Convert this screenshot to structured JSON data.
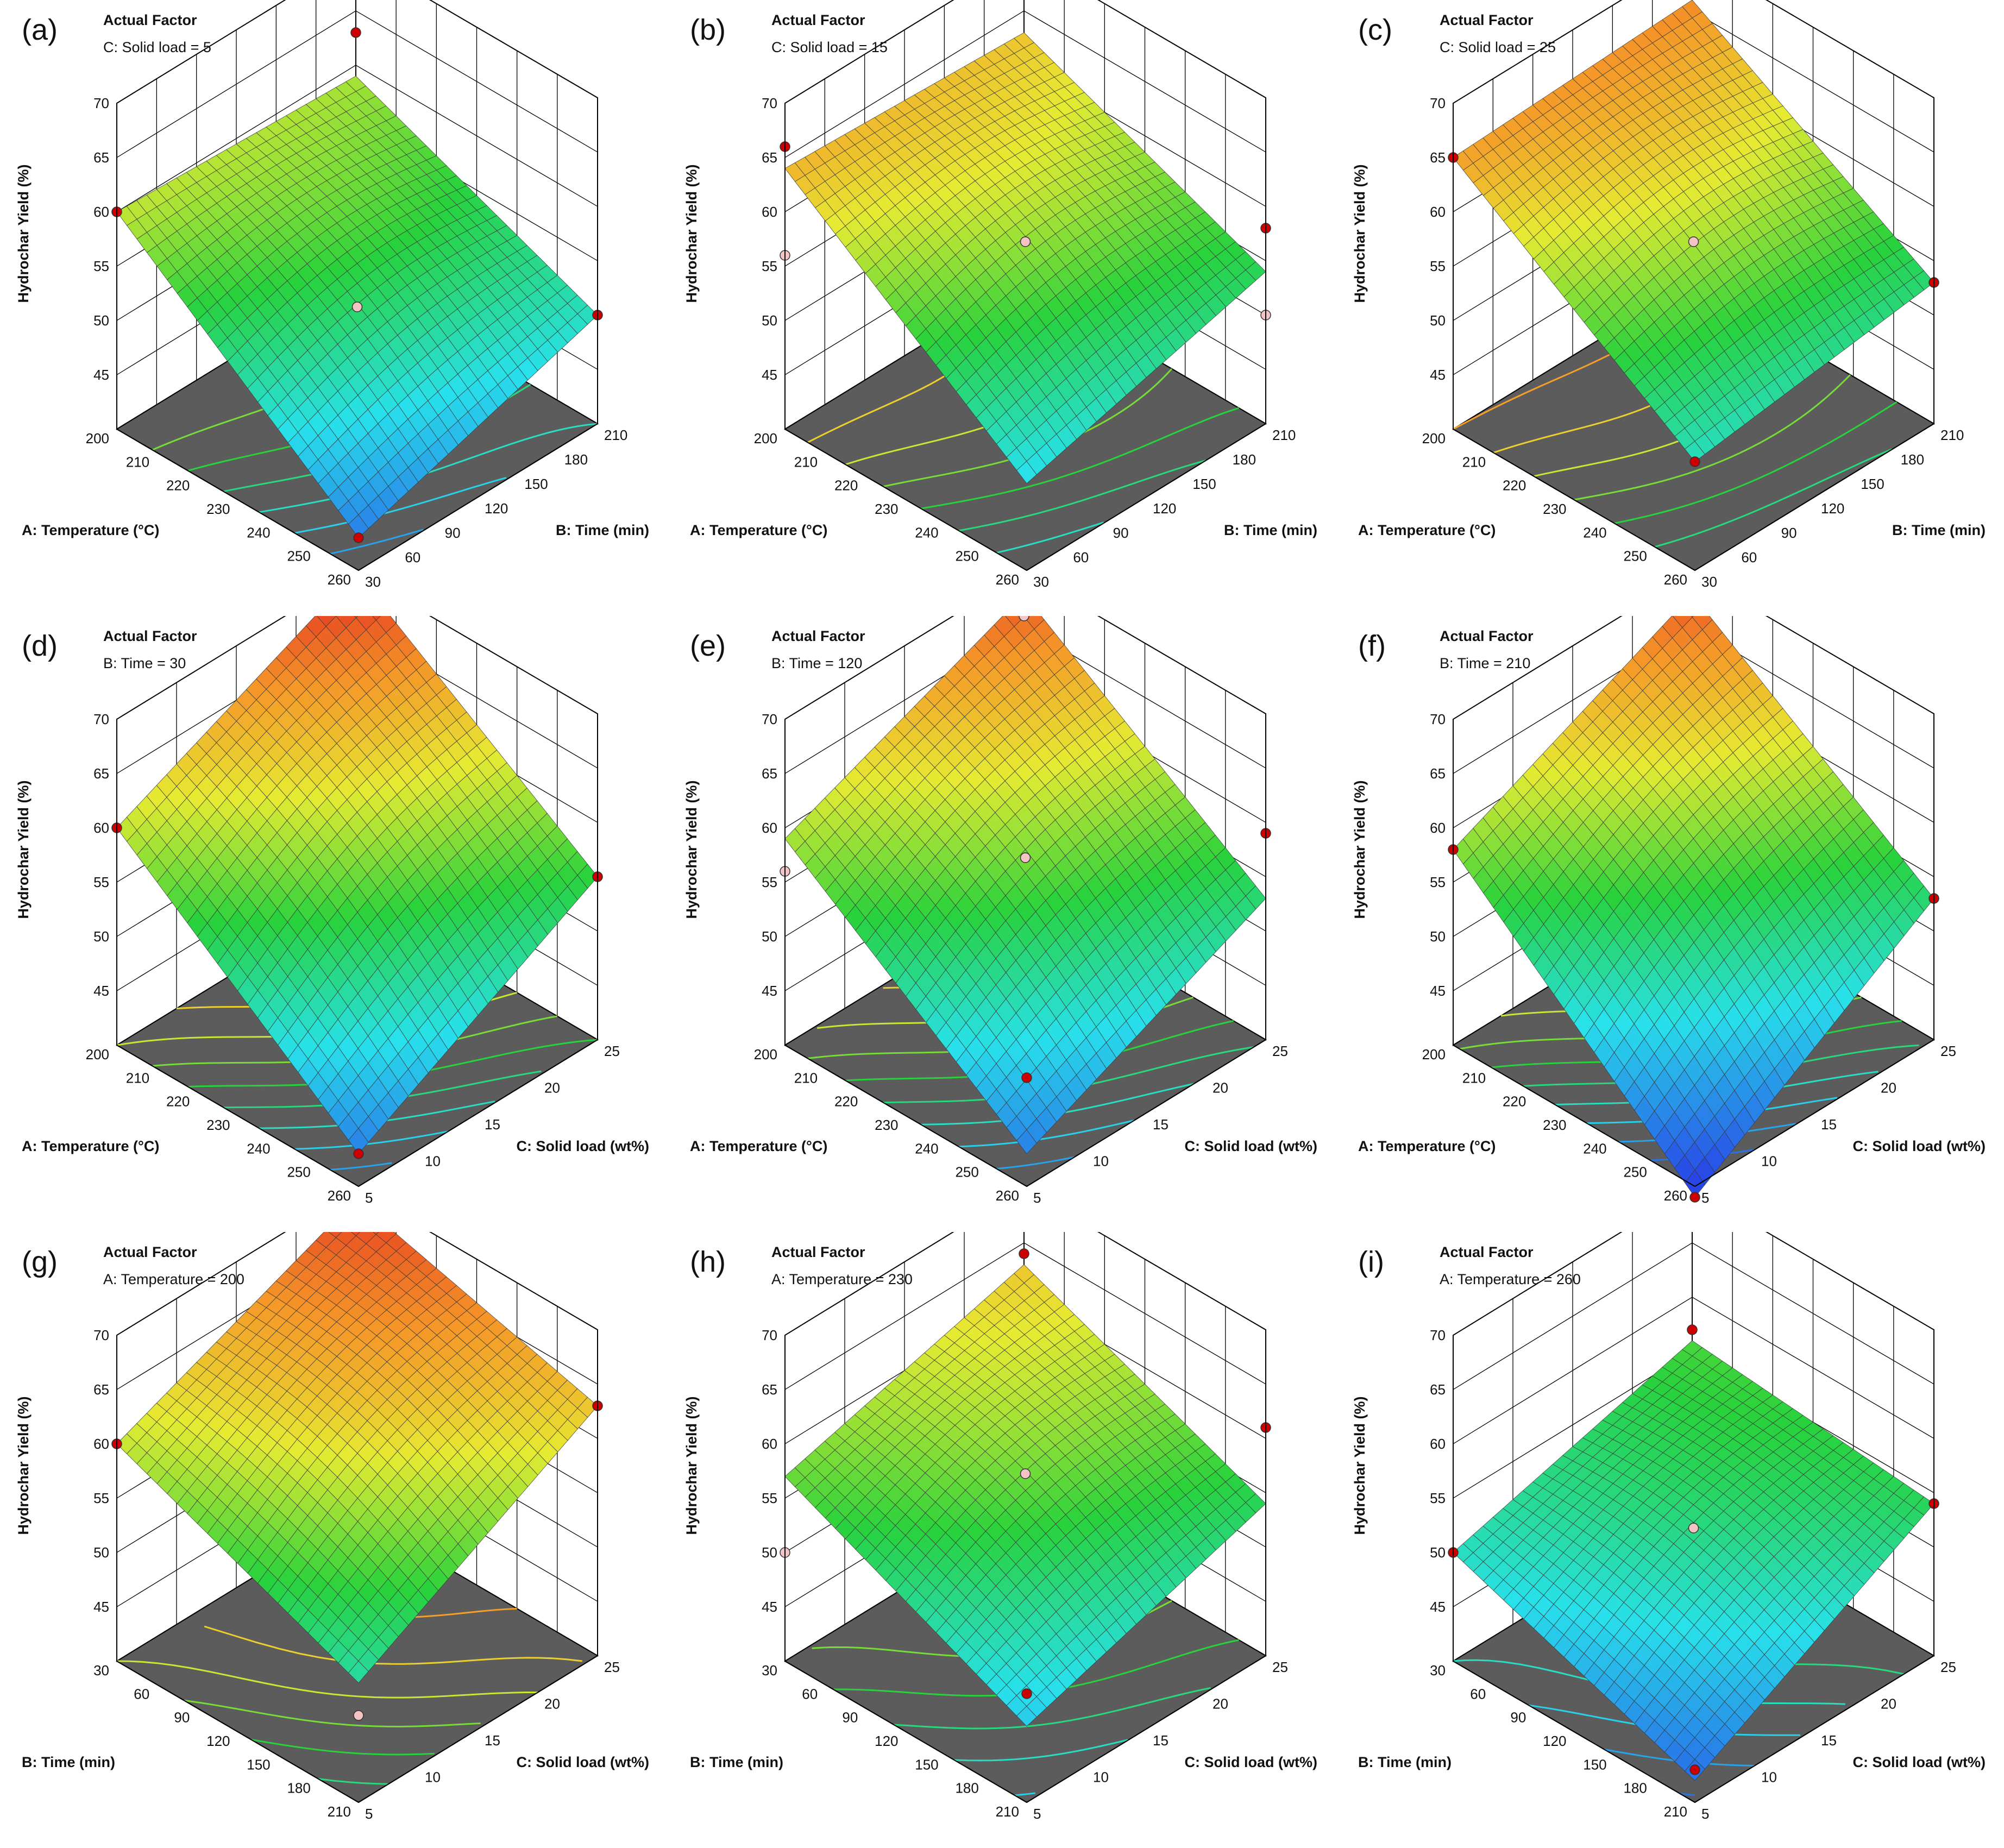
{
  "chart_data": [
    {
      "panel_label": "(a)",
      "type": "surface3d",
      "factor_title": "Actual Factor",
      "factor_value": "C: Solid load = 5",
      "xlabel": "A: Temperature (°C)",
      "ylabel": "B: Time (min)",
      "zlabel": "Hydrochar Yield (%)",
      "x_ticks": [
        "200",
        "210",
        "220",
        "230",
        "240",
        "250",
        "260"
      ],
      "y_ticks": [
        "30",
        "60",
        "90",
        "120",
        "150",
        "180",
        "210"
      ],
      "z_ticks": [
        "45",
        "50",
        "55",
        "60",
        "65",
        "70"
      ],
      "zlim": [
        40,
        70
      ],
      "corners": {
        "x_min_y_min": 60,
        "x_max_y_min": 43,
        "x_min_y_max": 59,
        "x_max_y_max": 50
      },
      "design_points": [
        [
          200,
          30,
          60
        ],
        [
          260,
          30,
          43
        ],
        [
          200,
          210,
          63
        ],
        [
          260,
          210,
          50
        ],
        [
          230,
          120,
          51
        ]
      ]
    },
    {
      "panel_label": "(b)",
      "type": "surface3d",
      "factor_title": "Actual Factor",
      "factor_value": "C: Solid load = 15",
      "xlabel": "A: Temperature (°C)",
      "ylabel": "B: Time (min)",
      "zlabel": "Hydrochar Yield (%)",
      "x_ticks": [
        "200",
        "210",
        "220",
        "230",
        "240",
        "250",
        "260"
      ],
      "y_ticks": [
        "30",
        "60",
        "90",
        "120",
        "150",
        "180",
        "210"
      ],
      "z_ticks": [
        "45",
        "50",
        "55",
        "60",
        "65",
        "70"
      ],
      "zlim": [
        40,
        70
      ],
      "corners": {
        "x_min_y_min": 64,
        "x_max_y_min": 48,
        "x_min_y_max": 63,
        "x_max_y_max": 54
      },
      "design_points": [
        [
          200,
          30,
          66
        ],
        [
          200,
          30,
          56
        ],
        [
          230,
          120,
          57
        ],
        [
          260,
          210,
          50
        ],
        [
          260,
          210,
          58
        ]
      ]
    },
    {
      "panel_label": "(c)",
      "type": "surface3d",
      "factor_title": "Actual Factor",
      "factor_value": "C: Solid load = 25",
      "xlabel": "A: Temperature (°C)",
      "ylabel": "B: Time (min)",
      "zlabel": "Hydrochar Yield (%)",
      "x_ticks": [
        "200",
        "210",
        "220",
        "230",
        "240",
        "250",
        "260"
      ],
      "y_ticks": [
        "30",
        "60",
        "90",
        "120",
        "150",
        "180",
        "210"
      ],
      "z_ticks": [
        "45",
        "50",
        "55",
        "60",
        "65",
        "70"
      ],
      "zlim": [
        40,
        70
      ],
      "corners": {
        "x_min_y_min": 65,
        "x_max_y_min": 50,
        "x_min_y_max": 66,
        "x_max_y_max": 53
      },
      "design_points": [
        [
          200,
          30,
          65
        ],
        [
          260,
          30,
          50
        ],
        [
          200,
          210,
          69
        ],
        [
          260,
          210,
          53
        ],
        [
          230,
          120,
          57
        ]
      ]
    },
    {
      "panel_label": "(d)",
      "type": "surface3d",
      "factor_title": "Actual Factor",
      "factor_value": "B: Time = 30",
      "xlabel": "A: Temperature (°C)",
      "ylabel": "C: Solid load (wt%)",
      "zlabel": "Hydrochar Yield (%)",
      "x_ticks": [
        "200",
        "210",
        "220",
        "230",
        "240",
        "250",
        "260"
      ],
      "y_ticks": [
        "5",
        "10",
        "15",
        "20",
        "25"
      ],
      "z_ticks": [
        "45",
        "50",
        "55",
        "60",
        "65",
        "70"
      ],
      "zlim": [
        40,
        70
      ],
      "corners": {
        "x_min_y_min": 60,
        "x_max_y_min": 43,
        "x_min_y_max": 70,
        "x_max_y_max": 55
      },
      "design_points": [
        [
          200,
          5,
          60
        ],
        [
          260,
          5,
          43
        ],
        [
          200,
          25,
          70
        ],
        [
          260,
          25,
          55
        ]
      ]
    },
    {
      "panel_label": "(e)",
      "type": "surface3d",
      "factor_title": "Actual Factor",
      "factor_value": "B: Time = 120",
      "xlabel": "A: Temperature (°C)",
      "ylabel": "C: Solid load (wt%)",
      "zlabel": "Hydrochar Yield (%)",
      "x_ticks": [
        "200",
        "210",
        "220",
        "230",
        "240",
        "250",
        "260"
      ],
      "y_ticks": [
        "5",
        "10",
        "15",
        "20",
        "25"
      ],
      "z_ticks": [
        "45",
        "50",
        "55",
        "60",
        "65",
        "70"
      ],
      "zlim": [
        40,
        70
      ],
      "corners": {
        "x_min_y_min": 59,
        "x_max_y_min": 43,
        "x_min_y_max": 68,
        "x_max_y_max": 53
      },
      "design_points": [
        [
          200,
          5,
          56
        ],
        [
          230,
          15,
          57
        ],
        [
          200,
          25,
          66
        ],
        [
          260,
          25,
          59
        ],
        [
          260,
          5,
          50
        ]
      ]
    },
    {
      "panel_label": "(f)",
      "type": "surface3d",
      "factor_title": "Actual Factor",
      "factor_value": "B: Time = 210",
      "xlabel": "A: Temperature (°C)",
      "ylabel": "C: Solid load (wt%)",
      "zlabel": "Hydrochar Yield (%)",
      "x_ticks": [
        "200",
        "210",
        "220",
        "230",
        "240",
        "250",
        "260"
      ],
      "y_ticks": [
        "5",
        "10",
        "15",
        "20",
        "25"
      ],
      "z_ticks": [
        "45",
        "50",
        "55",
        "60",
        "65",
        "70"
      ],
      "zlim": [
        40,
        70
      ],
      "corners": {
        "x_min_y_min": 58,
        "x_max_y_min": 39,
        "x_min_y_max": 68,
        "x_max_y_max": 53
      },
      "design_points": [
        [
          200,
          5,
          58
        ],
        [
          260,
          5,
          39
        ],
        [
          200,
          25,
          69
        ],
        [
          260,
          25,
          53
        ]
      ]
    },
    {
      "panel_label": "(g)",
      "type": "surface3d",
      "factor_title": "Actual Factor",
      "factor_value": "A: Temperature = 200",
      "xlabel": "B: Time (min)",
      "ylabel": "C: Solid load (wt%)",
      "zlabel": "Hydrochar Yield (%)",
      "x_ticks": [
        "30",
        "60",
        "90",
        "120",
        "150",
        "180",
        "210"
      ],
      "y_ticks": [
        "5",
        "10",
        "15",
        "20",
        "25"
      ],
      "z_ticks": [
        "45",
        "50",
        "55",
        "60",
        "65",
        "70"
      ],
      "zlim": [
        40,
        70
      ],
      "corners": {
        "x_min_y_min": 60,
        "x_max_y_min": 51,
        "x_min_y_max": 69,
        "x_max_y_max": 63
      },
      "design_points": [
        [
          30,
          5,
          60
        ],
        [
          210,
          5,
          48
        ],
        [
          30,
          25,
          70
        ],
        [
          210,
          25,
          63
        ]
      ]
    },
    {
      "panel_label": "(h)",
      "type": "surface3d",
      "factor_title": "Actual Factor",
      "factor_value": "A: Temperature = 230",
      "xlabel": "B: Time (min)",
      "ylabel": "C: Solid load (wt%)",
      "zlabel": "Hydrochar Yield (%)",
      "x_ticks": [
        "30",
        "60",
        "90",
        "120",
        "150",
        "180",
        "210"
      ],
      "y_ticks": [
        "5",
        "10",
        "15",
        "20",
        "25"
      ],
      "z_ticks": [
        "45",
        "50",
        "55",
        "60",
        "65",
        "70"
      ],
      "zlim": [
        40,
        70
      ],
      "corners": {
        "x_min_y_min": 57,
        "x_max_y_min": 47,
        "x_min_y_max": 63,
        "x_max_y_max": 54
      },
      "design_points": [
        [
          30,
          5,
          50
        ],
        [
          30,
          25,
          64
        ],
        [
          120,
          15,
          57
        ],
        [
          210,
          5,
          50
        ],
        [
          210,
          25,
          61
        ]
      ]
    },
    {
      "panel_label": "(i)",
      "type": "surface3d",
      "factor_title": "Actual Factor",
      "factor_value": "A: Temperature = 260",
      "xlabel": "B: Time (min)",
      "ylabel": "C: Solid load (wt%)",
      "zlabel": "Hydrochar Yield (%)",
      "x_ticks": [
        "30",
        "60",
        "90",
        "120",
        "150",
        "180",
        "210"
      ],
      "y_ticks": [
        "5",
        "10",
        "15",
        "20",
        "25"
      ],
      "z_ticks": [
        "45",
        "50",
        "55",
        "60",
        "65",
        "70"
      ],
      "zlim": [
        40,
        70
      ],
      "corners": {
        "x_min_y_min": 50,
        "x_max_y_min": 42,
        "x_min_y_max": 56,
        "x_max_y_max": 54
      },
      "design_points": [
        [
          30,
          5,
          50
        ],
        [
          210,
          5,
          43
        ],
        [
          30,
          25,
          57
        ],
        [
          210,
          25,
          54
        ],
        [
          120,
          15,
          52
        ]
      ]
    }
  ]
}
